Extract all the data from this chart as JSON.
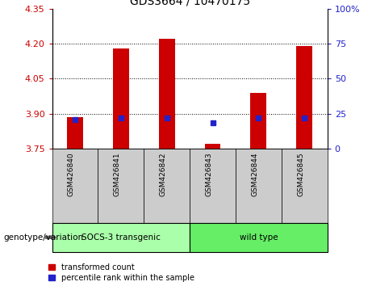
{
  "title": "GDS3664 / 10470175",
  "samples": [
    "GSM426840",
    "GSM426841",
    "GSM426842",
    "GSM426843",
    "GSM426844",
    "GSM426845"
  ],
  "red_bar_bottom": 3.75,
  "red_bar_tops": [
    3.885,
    4.18,
    4.22,
    3.77,
    3.99,
    4.19
  ],
  "blue_y": [
    3.876,
    3.882,
    3.882,
    3.862,
    3.88,
    3.882
  ],
  "ylim_left": [
    3.75,
    4.35
  ],
  "ylim_right": [
    0,
    100
  ],
  "yticks_left": [
    3.75,
    3.9,
    4.05,
    4.2,
    4.35
  ],
  "yticks_right": [
    0,
    25,
    50,
    75,
    100
  ],
  "ytick_labels_right": [
    "0",
    "25",
    "50",
    "75",
    "100%"
  ],
  "hlines": [
    3.9,
    4.05,
    4.2
  ],
  "bar_color": "#cc0000",
  "blue_color": "#2222cc",
  "group1_label": "SOCS-3 transgenic",
  "group1_indices": [
    0,
    1,
    2
  ],
  "group1_color": "#aaffaa",
  "group2_label": "wild type",
  "group2_indices": [
    3,
    4,
    5
  ],
  "group2_color": "#66ee66",
  "genotype_label": "genotype/variation",
  "legend1": "transformed count",
  "legend2": "percentile rank within the sample",
  "bar_width": 0.35,
  "tick_label_color_left": "#cc0000",
  "tick_label_color_right": "#2222cc",
  "sample_box_color": "#cccccc",
  "xlim": [
    -0.5,
    5.5
  ]
}
